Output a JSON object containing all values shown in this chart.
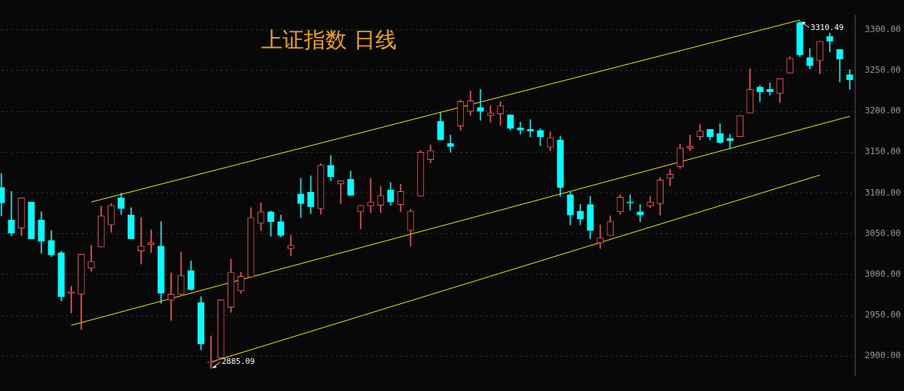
{
  "chart_data": {
    "type": "candlestick",
    "title": "上证指数 日线",
    "categories": [
      null,
      null,
      null,
      null,
      null,
      null,
      null,
      null,
      null,
      null,
      null,
      null,
      null,
      null,
      null,
      null,
      null,
      null,
      null,
      null,
      null,
      null,
      null,
      null,
      null,
      null,
      null,
      null,
      null,
      null,
      null,
      null,
      null,
      null,
      null,
      null,
      null,
      null,
      null,
      null,
      null,
      null,
      null,
      null,
      null,
      null,
      null,
      null,
      null,
      null,
      null,
      null,
      null,
      null,
      null,
      null,
      null,
      null,
      null,
      null,
      null,
      null,
      null,
      null,
      null,
      null,
      null,
      null,
      null,
      null,
      null,
      null,
      null,
      null,
      null,
      null,
      null,
      null,
      null,
      null,
      null,
      null,
      null,
      null,
      null,
      null
    ],
    "ohlc": [
      [
        3107,
        3124,
        3072,
        3088
      ],
      [
        3067,
        3102,
        3048,
        3051
      ],
      [
        3057,
        3094,
        3048,
        3094
      ],
      [
        3089,
        3089,
        3044,
        3044
      ],
      [
        3067,
        3077,
        3026,
        3041
      ],
      [
        3042,
        3054,
        3022,
        3024
      ],
      [
        3027,
        3029,
        2968,
        2973
      ],
      [
        2977,
        2986,
        2953,
        2979
      ],
      [
        2976,
        3025,
        2933,
        3025
      ],
      [
        3008,
        3036,
        3004,
        3016
      ],
      [
        3034,
        3084,
        3034,
        3072
      ],
      [
        3061,
        3087,
        3052,
        3085
      ],
      [
        3094,
        3100,
        3074,
        3081
      ],
      [
        3073,
        3082,
        3044,
        3044
      ],
      [
        3029,
        3070,
        3013,
        3035
      ],
      [
        3037,
        3055,
        3027,
        3039
      ],
      [
        3035,
        3065,
        2965,
        2977
      ],
      [
        2969,
        3002,
        2944,
        2976
      ],
      [
        2976,
        3028,
        2976,
        2999
      ],
      [
        3005,
        3017,
        2981,
        2982
      ],
      [
        2966,
        2973,
        2908,
        2915
      ],
      [
        2892,
        2925,
        2885.09,
        2893
      ],
      [
        2898,
        2969,
        2897,
        2969
      ],
      [
        2960,
        3019,
        2954,
        3003
      ],
      [
        2980,
        3003,
        2977,
        2998
      ],
      [
        2997,
        3082,
        2997,
        3070
      ],
      [
        3063,
        3088,
        3054,
        3077
      ],
      [
        3077,
        3078,
        3047,
        3065
      ],
      [
        3065,
        3073,
        3046,
        3048
      ],
      [
        3032,
        3048,
        3023,
        3036
      ],
      [
        3099,
        3118,
        3070,
        3087
      ],
      [
        3101,
        3121,
        3075,
        3083
      ],
      [
        3081,
        3136,
        3074,
        3134
      ],
      [
        3134,
        3146,
        3115,
        3120
      ],
      [
        3111,
        3115,
        3087,
        3115
      ],
      [
        3117,
        3127,
        3097,
        3097
      ],
      [
        3077,
        3085,
        3056,
        3085
      ],
      [
        3084,
        3118,
        3076,
        3089
      ],
      [
        3085,
        3108,
        3076,
        3097
      ],
      [
        3104,
        3113,
        3085,
        3089
      ],
      [
        3086,
        3111,
        3077,
        3102
      ],
      [
        3054,
        3080,
        3035,
        3078
      ],
      [
        3096,
        3152,
        3096,
        3150
      ],
      [
        3141,
        3159,
        3137,
        3152
      ],
      [
        3188,
        3198,
        3165,
        3165
      ],
      [
        3161,
        3171,
        3150,
        3157
      ],
      [
        3182,
        3214,
        3177,
        3212
      ],
      [
        3200,
        3225,
        3195,
        3213
      ],
      [
        3205,
        3227,
        3189,
        3200
      ],
      [
        3195,
        3207,
        3187,
        3198
      ],
      [
        3197,
        3212,
        3183,
        3207
      ],
      [
        3196,
        3196,
        3177,
        3179
      ],
      [
        3180,
        3187,
        3172,
        3177
      ],
      [
        3178,
        3190,
        3169,
        3176
      ],
      [
        3177,
        3179,
        3158,
        3169
      ],
      [
        3156,
        3175,
        3152,
        3168
      ],
      [
        3165,
        3170,
        3096,
        3107
      ],
      [
        3098,
        3101,
        3061,
        3073
      ],
      [
        3078,
        3086,
        3061,
        3068
      ],
      [
        3086,
        3096,
        3044,
        3054
      ],
      [
        3039,
        3061,
        3032,
        3045
      ],
      [
        3048,
        3072,
        3048,
        3065
      ],
      [
        3077,
        3098,
        3074,
        3095
      ],
      [
        3089,
        3098,
        3079,
        3088
      ],
      [
        3077,
        3086,
        3065,
        3073
      ],
      [
        3084,
        3096,
        3082,
        3089
      ],
      [
        3087,
        3119,
        3073,
        3116
      ],
      [
        3118,
        3129,
        3109,
        3123
      ],
      [
        3132,
        3160,
        3130,
        3155
      ],
      [
        3155,
        3171,
        3152,
        3157
      ],
      [
        3169,
        3184,
        3165,
        3176
      ],
      [
        3178,
        3178,
        3165,
        3169
      ],
      [
        3173,
        3185,
        3161,
        3162
      ],
      [
        3167,
        3172,
        3154,
        3164
      ],
      [
        3169,
        3195,
        3169,
        3195
      ],
      [
        3198,
        3252,
        3198,
        3227
      ],
      [
        3230,
        3232,
        3212,
        3224
      ],
      [
        3227,
        3235,
        3220,
        3224
      ],
      [
        3222,
        3240,
        3211,
        3240
      ],
      [
        3247,
        3267,
        3247,
        3265
      ],
      [
        3309,
        3310.49,
        3267,
        3269
      ],
      [
        3266,
        3277,
        3252,
        3256
      ],
      [
        3262,
        3286,
        3246,
        3286
      ],
      [
        3292,
        3296,
        3273,
        3286
      ],
      [
        3276,
        3276,
        3236,
        3264
      ],
      [
        3245,
        3251,
        3227,
        3239
      ]
    ],
    "series": [
      {
        "type": "line",
        "color": "#ffff00",
        "values": [
          null,
          null,
          null,
          null,
          null,
          null,
          null,
          null,
          null,
          3089,
          null,
          null,
          null,
          null,
          null,
          null,
          null,
          null,
          null,
          null,
          null,
          null,
          null,
          null,
          null,
          null,
          null,
          null,
          null,
          null,
          null,
          null,
          null,
          null,
          null,
          null,
          null,
          null,
          null,
          null,
          null,
          null,
          null,
          null,
          null,
          null,
          null,
          null,
          null,
          null,
          null,
          null,
          null,
          null,
          null,
          null,
          null,
          null,
          null,
          null,
          null,
          null,
          null,
          null,
          null,
          null,
          null,
          null,
          null,
          null,
          null,
          null,
          null,
          null,
          null,
          null,
          null,
          null,
          null,
          null,
          3312,
          null,
          null,
          null,
          null,
          null
        ]
      },
      {
        "type": "line",
        "color": "#ffff00",
        "values": [
          null,
          null,
          null,
          null,
          null,
          null,
          null,
          2938,
          null,
          null,
          null,
          null,
          null,
          null,
          null,
          null,
          null,
          null,
          null,
          null,
          null,
          null,
          null,
          null,
          null,
          null,
          null,
          null,
          null,
          null,
          null,
          null,
          null,
          null,
          null,
          null,
          null,
          null,
          null,
          null,
          null,
          null,
          null,
          null,
          null,
          null,
          null,
          null,
          null,
          null,
          null,
          null,
          null,
          null,
          null,
          null,
          null,
          null,
          null,
          null,
          null,
          null,
          null,
          null,
          null,
          null,
          null,
          null,
          null,
          null,
          null,
          null,
          null,
          null,
          null,
          null,
          null,
          null,
          null,
          null,
          null,
          null,
          null,
          null,
          null,
          3194
        ]
      },
      {
        "type": "line",
        "color": "#ffff00",
        "values": [
          null,
          null,
          null,
          null,
          null,
          null,
          null,
          null,
          null,
          null,
          null,
          null,
          null,
          null,
          null,
          null,
          null,
          null,
          null,
          null,
          null,
          2893,
          null,
          null,
          null,
          null,
          null,
          null,
          null,
          null,
          null,
          null,
          null,
          null,
          null,
          null,
          null,
          null,
          null,
          null,
          null,
          null,
          null,
          null,
          null,
          null,
          null,
          null,
          null,
          null,
          null,
          null,
          null,
          null,
          null,
          null,
          null,
          null,
          null,
          null,
          null,
          null,
          null,
          null,
          null,
          null,
          null,
          null,
          null,
          null,
          null,
          null,
          null,
          null,
          null,
          null,
          null,
          null,
          null,
          null,
          null,
          null,
          3122,
          null,
          null,
          null
        ]
      }
    ],
    "ylim": [
      2876,
      3318
    ],
    "yticks": [
      {
        "value": 2900,
        "label": "2900.00"
      },
      {
        "value": 2950,
        "label": "2950.00"
      },
      {
        "value": 3000,
        "label": "3000.00"
      },
      {
        "value": 3050,
        "label": "3050.00"
      },
      {
        "value": 3100,
        "label": "3100.00"
      },
      {
        "value": 3150,
        "label": "3150.00"
      },
      {
        "value": 3200,
        "label": "3200.00"
      },
      {
        "value": 3250,
        "label": "3250.00"
      },
      {
        "value": 3300,
        "label": "3300.00"
      }
    ],
    "grid": "y",
    "tick_labels": "y",
    "annotations": [
      "3310.49",
      "2885.09"
    ]
  }
}
